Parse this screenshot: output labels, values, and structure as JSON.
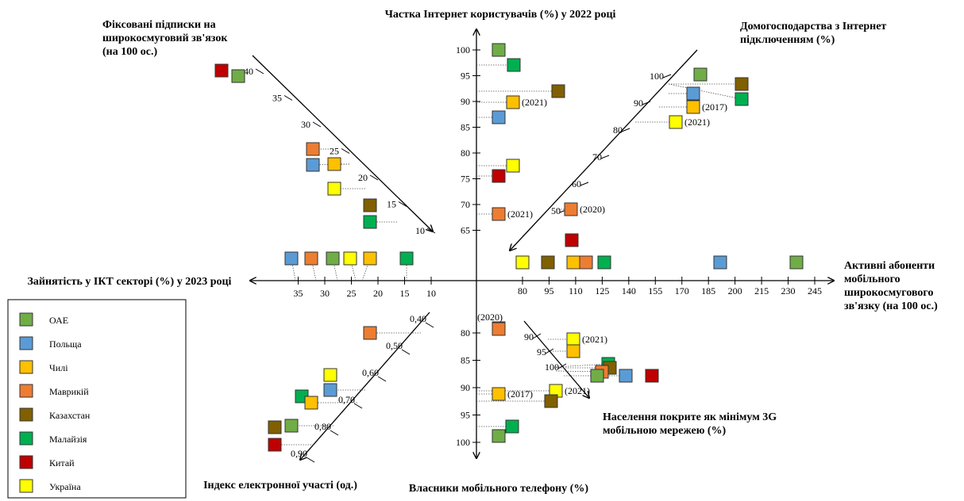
{
  "chart_data": {
    "type": "scatter",
    "legend_position": "bottom-left",
    "legend": [
      {
        "name": "ОАЕ",
        "color": "#70AD47"
      },
      {
        "name": "Польща",
        "color": "#5B9BD5"
      },
      {
        "name": "Чилі",
        "color": "#FFC000"
      },
      {
        "name": "Маврикій",
        "color": "#ED7D31"
      },
      {
        "name": "Казахстан",
        "color": "#806000"
      },
      {
        "name": "Малайзія",
        "color": "#00B050"
      },
      {
        "name": "Китай",
        "color": "#C00000"
      },
      {
        "name": "Україна",
        "color": "#FFFF00"
      }
    ],
    "axes": [
      {
        "key": "internet_users",
        "title": [
          "Частка Інтернет користувачів (%) у 2022 році"
        ],
        "ticks": [
          "100",
          "95",
          "90",
          "85",
          "80",
          "75",
          "70",
          "65"
        ],
        "tick_values": [
          100,
          95,
          90,
          85,
          80,
          75,
          70,
          65
        ],
        "range": [
          60,
          100
        ],
        "points": [
          {
            "country": "ОАЕ",
            "value": 100
          },
          {
            "country": "Малайзія",
            "value": 97
          },
          {
            "country": "Казахстан",
            "value": 92
          },
          {
            "country": "Чилі",
            "value": 90,
            "note": "(2021)"
          },
          {
            "country": "Польща",
            "value": 87
          },
          {
            "country": "Україна",
            "value": 78
          },
          {
            "country": "Китай",
            "value": 76
          },
          {
            "country": "Маврикій",
            "value": 68,
            "note": "(2021)"
          }
        ]
      },
      {
        "key": "households_internet",
        "title": [
          "Домогосподарства з Інтернет",
          "підключенням (%)"
        ],
        "ticks": [
          "100",
          "90",
          "80",
          "70",
          "60",
          "50"
        ],
        "tick_values": [
          100,
          90,
          80,
          70,
          60,
          50
        ],
        "range": [
          0,
          100
        ],
        "points": [
          {
            "country": "ОАЕ",
            "value": 100
          },
          {
            "country": "Казахстан",
            "value": 99
          },
          {
            "country": "Польща",
            "value": 95
          },
          {
            "country": "Малайзія",
            "value": 94
          },
          {
            "country": "Чилі",
            "value": 90,
            "note": "(2017)"
          },
          {
            "country": "Україна",
            "value": 84,
            "note": "(2021)"
          },
          {
            "country": "Маврикій",
            "value": 50,
            "note": "(2020)"
          }
        ]
      },
      {
        "key": "mobile_broadband",
        "title": [
          "Активні абоненти",
          "мобільного",
          "широкосмугового",
          "зв'язку (на 100 ос.)"
        ],
        "ticks": [
          "80",
          "95",
          "110",
          "125",
          "140",
          "155",
          "170",
          "185",
          "200",
          "215",
          "230",
          "245"
        ],
        "tick_values": [
          80,
          95,
          110,
          125,
          140,
          155,
          170,
          185,
          200,
          215,
          230,
          245
        ],
        "range": [
          0,
          245
        ],
        "points": [
          {
            "country": "Україна",
            "value": 79
          },
          {
            "country": "Казахстан",
            "value": 92
          },
          {
            "country": "Чилі",
            "value": 108
          },
          {
            "country": "Китай",
            "value": 109
          },
          {
            "country": "Маврикій",
            "value": 114
          },
          {
            "country": "Малайзія",
            "value": 125
          },
          {
            "country": "Польща",
            "value": 189
          },
          {
            "country": "ОАЕ",
            "value": 234
          }
        ]
      },
      {
        "key": "coverage_3g",
        "title": [
          "Населення покрите як мінімум 3G",
          "мобільною мережею (%)"
        ],
        "ticks": [
          "90",
          "95",
          "100"
        ],
        "tick_values": [
          90,
          95,
          100
        ],
        "range": [
          85,
          100
        ],
        "points": [
          {
            "country": "Маврикій",
            "value": 85,
            "note": "(2020)"
          },
          {
            "country": "Україна",
            "value": 92,
            "note": "(2021)"
          },
          {
            "country": "Чилі",
            "value": 95
          },
          {
            "country": "Малайзія",
            "value": 99
          },
          {
            "country": "Казахстан",
            "value": 99
          },
          {
            "country": "Маврикій",
            "value": 99
          },
          {
            "country": "ОАЕ",
            "value": 99
          },
          {
            "country": "Польща",
            "value": 99
          },
          {
            "country": "Китай",
            "value": 99
          }
        ]
      },
      {
        "key": "mobile_owners",
        "title": [
          "Власники мобільного телефону (%)"
        ],
        "ticks": [
          "80",
          "85",
          "90",
          "95",
          "100"
        ],
        "tick_values": [
          80,
          85,
          90,
          95,
          100
        ],
        "range": [
          75,
          100
        ],
        "points": [
          {
            "country": "Маврикій",
            "value": 80
          },
          {
            "country": "Україна",
            "value": 90,
            "note": "(2021)"
          },
          {
            "country": "Чилі",
            "value": 91,
            "note": "(2017)"
          },
          {
            "country": "Казахстан",
            "value": 92
          },
          {
            "country": "Малайзія",
            "value": 98
          },
          {
            "country": "ОАЕ",
            "value": 100
          }
        ]
      },
      {
        "key": "e_participation",
        "title": [
          "Індекс електронної участі (од.)"
        ],
        "ticks": [
          "0,40",
          "0,50",
          "0,60",
          "0,70",
          "0,80",
          "0,90"
        ],
        "tick_values": [
          0.4,
          0.5,
          0.6,
          0.7,
          0.8,
          0.9
        ],
        "range": [
          0,
          0.9
        ],
        "points": [
          {
            "country": "Маврикій",
            "value": 0.4
          },
          {
            "country": "Україна",
            "value": 0.65
          },
          {
            "country": "Польща",
            "value": 0.68
          },
          {
            "country": "Малайзія",
            "value": 0.7
          },
          {
            "country": "Чилі",
            "value": 0.72
          },
          {
            "country": "ОАЕ",
            "value": 0.86
          },
          {
            "country": "Казахстан",
            "value": 0.87
          },
          {
            "country": "Китай",
            "value": 0.9
          }
        ]
      },
      {
        "key": "ict_employment",
        "title": [
          "Зайнятість у ІКТ секторі (%) у 2023 році"
        ],
        "ticks": [
          "35",
          "30",
          "25",
          "20",
          "15",
          "10"
        ],
        "tick_values": [
          35,
          30,
          25,
          20,
          15,
          10
        ],
        "range": [
          0,
          35
        ],
        "points": [
          {
            "country": "Польща",
            "value": 35
          },
          {
            "country": "Маврикій",
            "value": 31
          },
          {
            "country": "ОАЕ",
            "value": 27
          },
          {
            "country": "Україна",
            "value": 24
          },
          {
            "country": "Чилі",
            "value": 21
          },
          {
            "country": "Малайзія",
            "value": 14
          }
        ]
      },
      {
        "key": "fixed_broadband",
        "title": [
          "Фіксовані підписки на",
          "широкосмуговий зв'язок",
          "(на 100 ос.)"
        ],
        "ticks": [
          "40",
          "35",
          "30",
          "25",
          "20",
          "15",
          "10"
        ],
        "tick_values": [
          40,
          35,
          30,
          25,
          20,
          15,
          10
        ],
        "range": [
          0,
          40
        ],
        "points": [
          {
            "country": "Китай",
            "value": 42
          },
          {
            "country": "ОАЕ",
            "value": 41
          },
          {
            "country": "Маврикій",
            "value": 26
          },
          {
            "country": "Чилі",
            "value": 24
          },
          {
            "country": "Польща",
            "value": 24
          },
          {
            "country": "Україна",
            "value": 20
          },
          {
            "country": "Казахстан",
            "value": 16
          },
          {
            "country": "Малайзія",
            "value": 13
          }
        ]
      }
    ]
  }
}
